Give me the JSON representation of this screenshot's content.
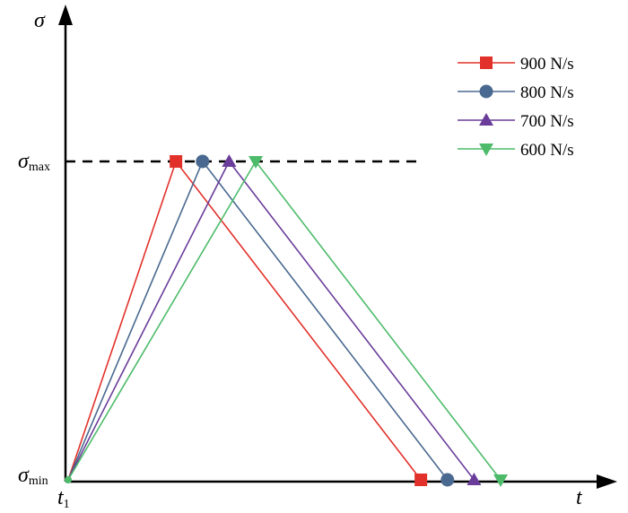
{
  "chart_data": {
    "type": "line",
    "xlabel": "t",
    "ylabel": "σ",
    "y_ticks": [
      {
        "symbol": "σ",
        "sub": "max"
      },
      {
        "symbol": "σ",
        "sub": "min"
      }
    ],
    "x_ticks": [
      {
        "symbol": "t",
        "sub": "1"
      }
    ],
    "reference_line": {
      "label": "σmax",
      "style": "dashed",
      "color": "#000000"
    },
    "legend_position": "top-right",
    "series": [
      {
        "name": "900 N/s",
        "color": "#e2312a",
        "marker": "square",
        "points": [
          [
            0,
            0
          ],
          [
            3.85,
            1
          ],
          [
            12.6,
            0
          ]
        ]
      },
      {
        "name": "800 N/s",
        "color": "#4a6990",
        "marker": "circle",
        "points": [
          [
            0,
            0
          ],
          [
            4.8,
            1
          ],
          [
            13.55,
            0
          ]
        ]
      },
      {
        "name": "700 N/s",
        "color": "#6a3d9a",
        "marker": "triangle-up",
        "points": [
          [
            0,
            0
          ],
          [
            5.75,
            1
          ],
          [
            14.5,
            0
          ]
        ]
      },
      {
        "name": "600 N/s",
        "color": "#4dbb6a",
        "marker": "triangle-down",
        "points": [
          [
            0,
            0
          ],
          [
            6.7,
            1
          ],
          [
            15.45,
            0
          ]
        ]
      }
    ]
  }
}
